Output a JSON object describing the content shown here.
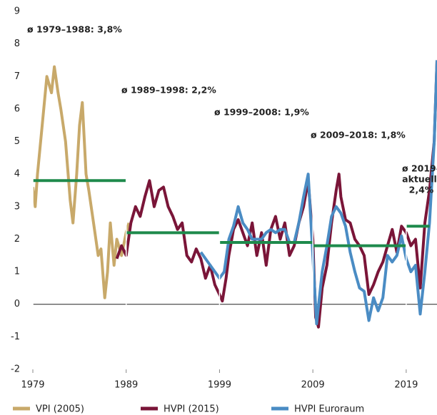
{
  "chart_data": {
    "type": "line",
    "xlim": [
      1979,
      2022.3
    ],
    "xticks": [
      1979,
      1989,
      1999,
      2009,
      2019
    ],
    "ylim": [
      -2,
      9
    ],
    "yticks": [
      -2,
      -1,
      0,
      1,
      2,
      3,
      4,
      5,
      6,
      7,
      8,
      9
    ],
    "legend": "bottom",
    "series": [
      {
        "name": "VPI (2005)",
        "color": "#c8a96a",
        "x": [
          1979,
          1979.25,
          1979.5,
          1980,
          1980.5,
          1981,
          1981.3,
          1981.7,
          1982,
          1982.5,
          1983,
          1983.3,
          1983.7,
          1984,
          1984.3,
          1984.7,
          1985,
          1985.5,
          1986,
          1986.3,
          1986.7,
          1987,
          1987.3,
          1987.7,
          1988,
          1988.5,
          1989,
          1989.3
        ],
        "values": [
          3.6,
          3.0,
          4.0,
          5.5,
          7.0,
          6.5,
          7.3,
          6.5,
          6.0,
          5.0,
          3.2,
          2.5,
          4.0,
          5.5,
          6.2,
          4.0,
          3.5,
          2.5,
          1.5,
          1.7,
          0.2,
          1.0,
          2.5,
          1.2,
          2.0,
          1.5,
          2.2,
          2.5
        ]
      },
      {
        "name": "HVPI (2015)",
        "color": "#7a1538",
        "x": [
          1988,
          1988.5,
          1989,
          1989.5,
          1990,
          1990.5,
          1991,
          1991.5,
          1992,
          1992.5,
          1993,
          1993.5,
          1994,
          1994.5,
          1995,
          1995.5,
          1996,
          1996.5,
          1997,
          1997.5,
          1998,
          1998.5,
          1999,
          1999.3,
          1999.7,
          2000,
          2000.5,
          2001,
          2001.5,
          2002,
          2002.5,
          2003,
          2003.5,
          2004,
          2004.5,
          2005,
          2005.5,
          2006,
          2006.5,
          2007,
          2007.5,
          2008,
          2008.5,
          2009,
          2009.3,
          2009.6,
          2010,
          2010.5,
          2011,
          2011.5,
          2011.8,
          2012,
          2012.5,
          2013,
          2013.5,
          2014,
          2014.5,
          2015,
          2015.5,
          2016,
          2016.5,
          2017,
          2017.5,
          2018,
          2018.5,
          2019,
          2019.5,
          2020,
          2020.5,
          2021,
          2021.5,
          2022,
          2022.3
        ],
        "values": [
          1.4,
          1.8,
          1.5,
          2.5,
          3.0,
          2.7,
          3.3,
          3.8,
          3.0,
          3.5,
          3.6,
          3.0,
          2.7,
          2.3,
          2.5,
          1.5,
          1.3,
          1.7,
          1.4,
          0.8,
          1.2,
          0.6,
          0.3,
          0.1,
          0.8,
          1.5,
          2.3,
          2.6,
          2.2,
          1.8,
          2.5,
          1.5,
          2.2,
          1.2,
          2.3,
          2.7,
          2.0,
          2.5,
          1.5,
          1.8,
          2.5,
          3.0,
          3.8,
          2.0,
          -0.4,
          -0.7,
          0.5,
          1.2,
          2.5,
          3.5,
          4.0,
          3.3,
          2.6,
          2.5,
          2.0,
          1.8,
          1.5,
          0.3,
          0.6,
          1.0,
          1.3,
          1.8,
          2.3,
          1.6,
          2.4,
          2.2,
          1.8,
          2.0,
          0.5,
          2.5,
          3.5,
          5.0,
          7.5
        ]
      },
      {
        "name": "HVPI Euroraum",
        "color": "#4a8cc4",
        "x": [
          1997,
          1998,
          1999,
          1999.5,
          2000,
          2000.5,
          2001,
          2001.5,
          2002,
          2002.5,
          2003,
          2003.5,
          2004,
          2004.5,
          2005,
          2005.5,
          2006,
          2006.5,
          2007,
          2007.5,
          2008,
          2008.5,
          2009,
          2009.4,
          2010,
          2010.5,
          2011,
          2011.5,
          2012,
          2012.5,
          2013,
          2013.5,
          2014,
          2014.5,
          2015,
          2015.5,
          2016,
          2016.5,
          2017,
          2017.5,
          2018,
          2018.5,
          2019,
          2019.5,
          2020,
          2020.5,
          2021,
          2021.5,
          2022,
          2022.3
        ],
        "values": [
          1.6,
          1.2,
          0.8,
          1.0,
          2.0,
          2.4,
          3.0,
          2.5,
          2.3,
          2.0,
          2.0,
          2.0,
          2.2,
          2.3,
          2.2,
          2.3,
          2.3,
          1.9,
          1.9,
          2.5,
          3.3,
          4.0,
          1.5,
          -0.6,
          1.0,
          1.8,
          2.7,
          3.0,
          2.8,
          2.4,
          1.6,
          1.0,
          0.5,
          0.4,
          -0.5,
          0.2,
          -0.2,
          0.2,
          1.5,
          1.3,
          1.5,
          2.1,
          1.4,
          1.0,
          1.2,
          -0.3,
          1.0,
          2.5,
          5.0,
          7.5
        ]
      }
    ],
    "average_color": "#1e8a4c",
    "averages": [
      {
        "label": [
          "ø 1979–1988: 3,8%"
        ],
        "start": 1979,
        "end": 1989,
        "value": 3.8
      },
      {
        "label": [
          "ø 1989–1998: 2,2%"
        ],
        "start": 1989,
        "end": 1999,
        "value": 2.2
      },
      {
        "label": [
          "ø 1999–2008: 1,9%"
        ],
        "start": 1999,
        "end": 2009,
        "value": 1.9
      },
      {
        "label": [
          "ø 2009–2018: 1,8%"
        ],
        "start": 2009,
        "end": 2019,
        "value": 1.8
      },
      {
        "label": [
          "ø 2019–",
          "aktuell:",
          "2,4%"
        ],
        "start": 2019,
        "end": 2021.5,
        "value": 2.4
      }
    ]
  }
}
